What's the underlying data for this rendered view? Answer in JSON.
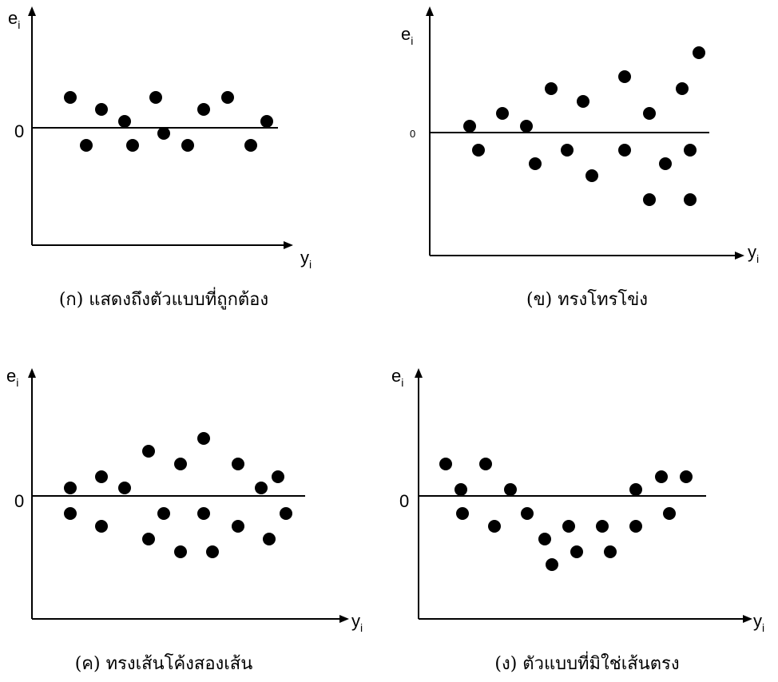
{
  "panels": [
    {
      "y_label": {
        "base": "e",
        "sub": "i"
      },
      "x_label": {
        "base": "y",
        "sub": "i"
      },
      "zero": "0",
      "caption": "(ก) แสดงถึงตัวแบบที่ถูกต้อง"
    },
    {
      "y_label": {
        "base": "e",
        "sub": "i"
      },
      "x_label": {
        "base": "y",
        "sub": "i"
      },
      "zero": "0",
      "caption": "(ข) ทรงโทรโข่ง"
    },
    {
      "y_label": {
        "base": "e",
        "sub": "i"
      },
      "x_label": {
        "base": "y",
        "sub": "i"
      },
      "zero": "0",
      "caption": "(ค) ทรงเส้นโค้งสองเส้น"
    },
    {
      "y_label": {
        "base": "e",
        "sub": "i"
      },
      "x_label": {
        "base": "y",
        "sub": "i"
      },
      "zero": "0",
      "caption": "(ง) ตัวแบบที่มิใช่เส้นตรง"
    }
  ]
}
